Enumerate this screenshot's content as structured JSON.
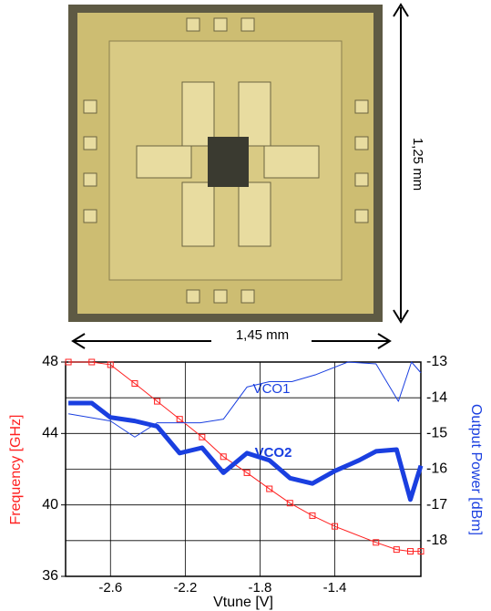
{
  "image": {
    "height_label": "1,25 mm",
    "width_label": "1,45 mm"
  },
  "chart_data": {
    "type": "line",
    "x_label": "Vtune [V]",
    "y_label": "Frequency [GHz]",
    "y2_label": "Output Power [dBm]",
    "xlim": [
      -2.84,
      -0.94
    ],
    "xticks": [
      -2.6,
      -2.2,
      -1.8,
      -1.4
    ],
    "ylim": [
      36,
      48
    ],
    "yticks": [
      36,
      40,
      44,
      48
    ],
    "y2lim": [
      -19,
      -13
    ],
    "y2ticks": [
      -13,
      -14,
      -15,
      -16,
      -17,
      -18
    ],
    "grid": true,
    "annotations": [
      "VCO1",
      "VCO2"
    ],
    "series": [
      {
        "color": "#ff2020",
        "marker": "square",
        "width": 1,
        "x": [
          -2.825,
          -2.7,
          -2.6,
          -2.47,
          -2.35,
          -2.23,
          -2.11,
          -1.996,
          -1.87,
          -1.75,
          -1.64,
          -1.52,
          -1.4,
          -1.18,
          -1.07,
          -0.996,
          -0.94
        ],
        "values": [
          48,
          48,
          47.85,
          46.8,
          45.8,
          44.8,
          43.8,
          42.7,
          41.8,
          40.9,
          40.1,
          39.4,
          38.8,
          37.9,
          37.5,
          37.4,
          37.4
        ]
      },
      {
        "color": "#1a3fe0",
        "axis": "y2",
        "width": 1,
        "x": [
          -2.825,
          -2.6,
          -2.47,
          -2.35,
          -2.12,
          -1.996,
          -1.87,
          -1.75,
          -1.63,
          -1.5,
          -1.33,
          -1.18,
          -1.06,
          -0.99,
          -0.94
        ],
        "values": [
          -14.45,
          -14.65,
          -15.1,
          -14.7,
          -14.7,
          -14.6,
          -13.7,
          -13.55,
          -13.55,
          -13.35,
          -13.0,
          -13.05,
          -14.1,
          -13.0,
          -13.3
        ]
      },
      {
        "color": "#1a3fe0",
        "axis": "y2",
        "width": 5,
        "x": [
          -2.825,
          -2.7,
          -2.6,
          -2.47,
          -2.35,
          -2.23,
          -2.11,
          -1.996,
          -1.87,
          -1.75,
          -1.64,
          -1.52,
          -1.4,
          -1.27,
          -1.18,
          -1.07,
          -0.996,
          -0.94
        ],
        "values": [
          -14.15,
          -14.15,
          -14.55,
          -14.65,
          -14.8,
          -15.55,
          -15.4,
          -16.1,
          -15.55,
          -15.75,
          -16.25,
          -16.4,
          -16.05,
          -15.75,
          -15.5,
          -15.45,
          -16.85,
          -15.9
        ]
      }
    ]
  }
}
